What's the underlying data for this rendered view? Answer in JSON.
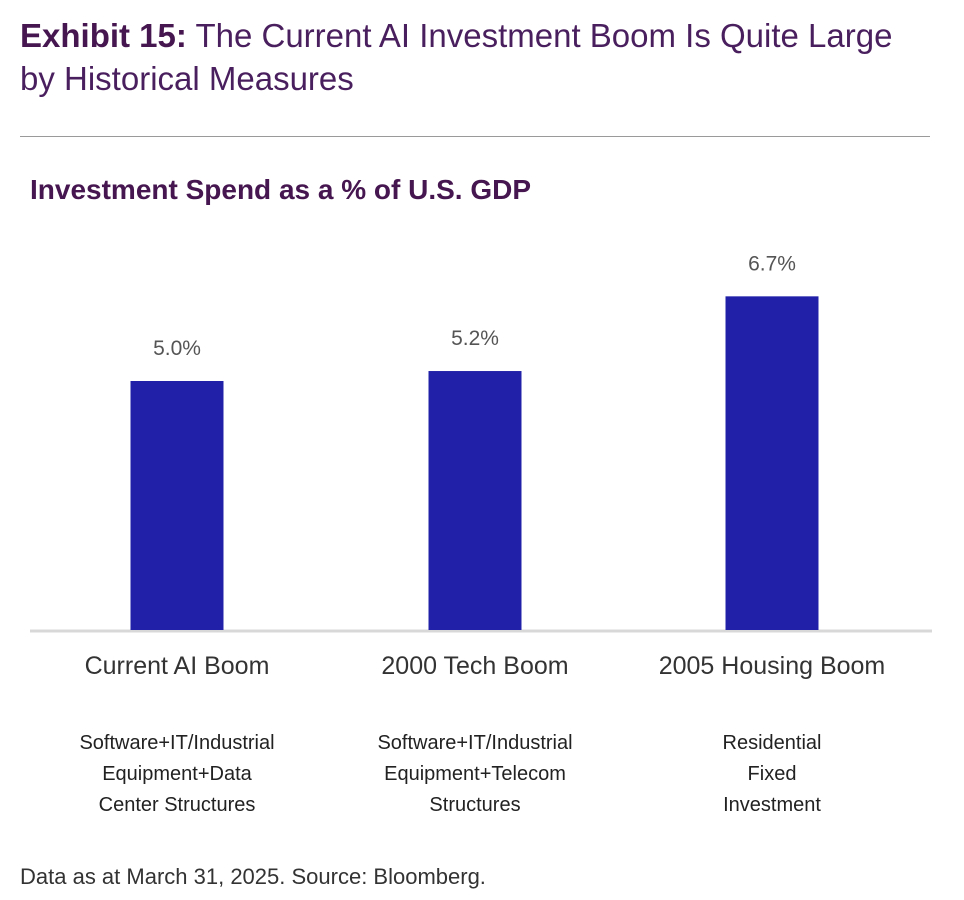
{
  "title_prefix": "Exhibit 15:",
  "title": "The Current AI Investment Boom Is Quite Large by Historical Measures",
  "source": "Data as at March 31, 2025. Source: Bloomberg.",
  "chart_data": {
    "type": "bar",
    "title": "Investment Spend as a % of U.S. GDP",
    "categories": [
      "Current AI Boom",
      "2000 Tech Boom",
      "2005 Housing Boom"
    ],
    "descriptions": [
      [
        "Software+IT/Industrial",
        "Equipment+Data",
        "Center Structures"
      ],
      [
        "Software+IT/Industrial",
        "Equipment+Telecom",
        "Structures"
      ],
      [
        "Residential",
        "Fixed",
        "Investment"
      ]
    ],
    "values": [
      5.0,
      5.2,
      6.7
    ],
    "data_labels": [
      "5.0%",
      "5.2%",
      "6.7%"
    ],
    "ylim": [
      0,
      7
    ],
    "bar_color": "#2020a8",
    "xlabel": "",
    "ylabel": "",
    "grid": false
  }
}
